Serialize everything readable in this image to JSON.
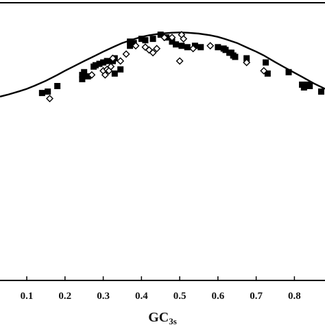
{
  "chart_data": {
    "type": "scatter",
    "title": "",
    "xlabel": {
      "main": "GC",
      "subscript": "3s"
    },
    "ylabel": "",
    "xlim": [
      0.03,
      0.88
    ],
    "ylim": [
      0,
      1
    ],
    "x_ticks": [
      "0.1",
      "0.2",
      "0.3",
      "0.4",
      "0.5",
      "0.6",
      "0.7",
      "0.8"
    ],
    "x_tick_values": [
      0.1,
      0.2,
      0.3,
      0.4,
      0.5,
      0.6,
      0.7,
      0.8
    ],
    "grid": false,
    "legend": "none",
    "series": [
      {
        "marker": "filled-square",
        "color": "#000000",
        "points": [
          [
            0.14,
            0.675
          ],
          [
            0.155,
            0.68
          ],
          [
            0.18,
            0.7
          ],
          [
            0.245,
            0.725
          ],
          [
            0.245,
            0.74
          ],
          [
            0.25,
            0.75
          ],
          [
            0.26,
            0.735
          ],
          [
            0.275,
            0.77
          ],
          [
            0.28,
            0.775
          ],
          [
            0.29,
            0.78
          ],
          [
            0.3,
            0.785
          ],
          [
            0.31,
            0.79
          ],
          [
            0.325,
            0.79
          ],
          [
            0.33,
            0.8
          ],
          [
            0.33,
            0.745
          ],
          [
            0.345,
            0.76
          ],
          [
            0.37,
            0.845
          ],
          [
            0.37,
            0.86
          ],
          [
            0.38,
            0.855
          ],
          [
            0.4,
            0.87
          ],
          [
            0.41,
            0.865
          ],
          [
            0.43,
            0.87
          ],
          [
            0.45,
            0.885
          ],
          [
            0.465,
            0.875
          ],
          [
            0.48,
            0.86
          ],
          [
            0.49,
            0.85
          ],
          [
            0.505,
            0.845
          ],
          [
            0.52,
            0.84
          ],
          [
            0.54,
            0.845
          ],
          [
            0.555,
            0.84
          ],
          [
            0.6,
            0.84
          ],
          [
            0.615,
            0.835
          ],
          [
            0.62,
            0.83
          ],
          [
            0.63,
            0.82
          ],
          [
            0.635,
            0.82
          ],
          [
            0.64,
            0.81
          ],
          [
            0.645,
            0.805
          ],
          [
            0.675,
            0.8
          ],
          [
            0.725,
            0.785
          ],
          [
            0.73,
            0.745
          ],
          [
            0.785,
            0.75
          ],
          [
            0.82,
            0.705
          ],
          [
            0.825,
            0.695
          ],
          [
            0.835,
            0.705
          ],
          [
            0.84,
            0.7
          ],
          [
            0.87,
            0.68
          ]
        ]
      },
      {
        "marker": "open-diamond",
        "color": "#000000",
        "points": [
          [
            0.16,
            0.655
          ],
          [
            0.27,
            0.74
          ],
          [
            0.3,
            0.755
          ],
          [
            0.305,
            0.74
          ],
          [
            0.31,
            0.76
          ],
          [
            0.315,
            0.755
          ],
          [
            0.32,
            0.77
          ],
          [
            0.325,
            0.8
          ],
          [
            0.345,
            0.79
          ],
          [
            0.36,
            0.815
          ],
          [
            0.385,
            0.845
          ],
          [
            0.41,
            0.84
          ],
          [
            0.42,
            0.83
          ],
          [
            0.43,
            0.82
          ],
          [
            0.44,
            0.835
          ],
          [
            0.46,
            0.875
          ],
          [
            0.48,
            0.875
          ],
          [
            0.5,
            0.79
          ],
          [
            0.505,
            0.885
          ],
          [
            0.51,
            0.87
          ],
          [
            0.535,
            0.835
          ],
          [
            0.58,
            0.845
          ],
          [
            0.675,
            0.785
          ],
          [
            0.72,
            0.755
          ]
        ]
      }
    ],
    "curve": {
      "style": "solid-line",
      "color": "#000000",
      "points": [
        [
          0.03,
          0.662
        ],
        [
          0.05,
          0.669
        ],
        [
          0.08,
          0.681
        ],
        [
          0.1,
          0.69
        ],
        [
          0.12,
          0.701
        ],
        [
          0.15,
          0.719
        ],
        [
          0.18,
          0.74
        ],
        [
          0.2,
          0.755
        ],
        [
          0.22,
          0.769
        ],
        [
          0.25,
          0.79
        ],
        [
          0.28,
          0.81
        ],
        [
          0.3,
          0.824
        ],
        [
          0.33,
          0.843
        ],
        [
          0.35,
          0.855
        ],
        [
          0.38,
          0.869
        ],
        [
          0.4,
          0.877
        ],
        [
          0.42,
          0.883
        ],
        [
          0.45,
          0.889
        ],
        [
          0.48,
          0.892
        ],
        [
          0.5,
          0.893
        ],
        [
          0.52,
          0.892
        ],
        [
          0.55,
          0.889
        ],
        [
          0.58,
          0.883
        ],
        [
          0.6,
          0.877
        ],
        [
          0.62,
          0.869
        ],
        [
          0.65,
          0.855
        ],
        [
          0.68,
          0.836
        ],
        [
          0.7,
          0.824
        ],
        [
          0.72,
          0.81
        ],
        [
          0.75,
          0.786
        ],
        [
          0.78,
          0.763
        ],
        [
          0.8,
          0.748
        ],
        [
          0.82,
          0.733
        ],
        [
          0.85,
          0.71
        ],
        [
          0.88,
          0.69
        ]
      ]
    }
  }
}
